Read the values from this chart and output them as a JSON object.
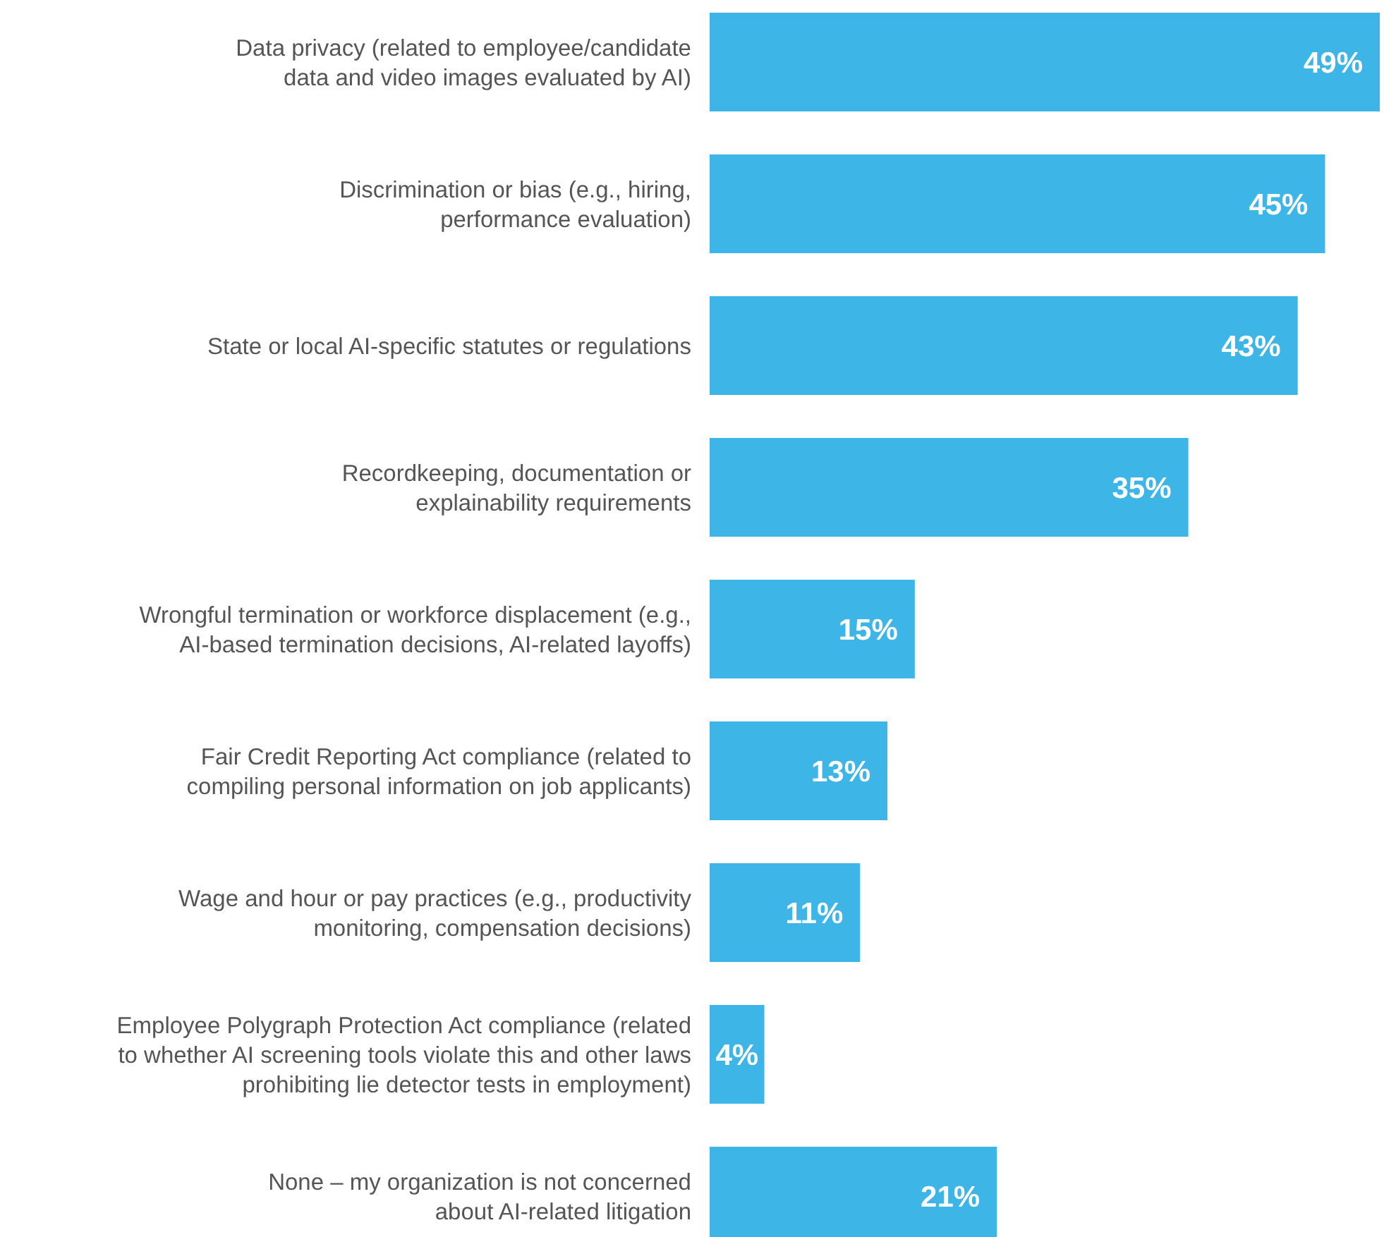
{
  "chart_data": {
    "type": "bar",
    "orientation": "horizontal",
    "color": "#3db5e6",
    "categories": [
      "Data privacy (related to employee/candidate\ndata and video images evaluated by AI)",
      "Discrimination or bias (e.g., hiring,\nperformance evaluation)",
      "State or local AI-specific statutes or regulations",
      "Recordkeeping, documentation or\nexplainability requirements",
      "Wrongful termination or workforce displacement (e.g.,\nAI-based termination decisions, AI-related layoffs)",
      "Fair Credit Reporting Act compliance (related to\ncompiling personal information on job applicants)",
      "Wage and hour or pay practices (e.g., productivity\nmonitoring, compensation decisions)",
      "Employee Polygraph Protection Act compliance (related\nto whether AI screening tools violate this and other laws\nprohibiting lie detector tests in employment)",
      "None – my organization is not concerned\nabout AI-related litigation"
    ],
    "values": [
      49,
      45,
      43,
      35,
      15,
      13,
      11,
      4,
      21
    ],
    "value_labels": [
      "49%",
      "45%",
      "43%",
      "35%",
      "15%",
      "13%",
      "11%",
      "4%",
      "21%"
    ]
  }
}
